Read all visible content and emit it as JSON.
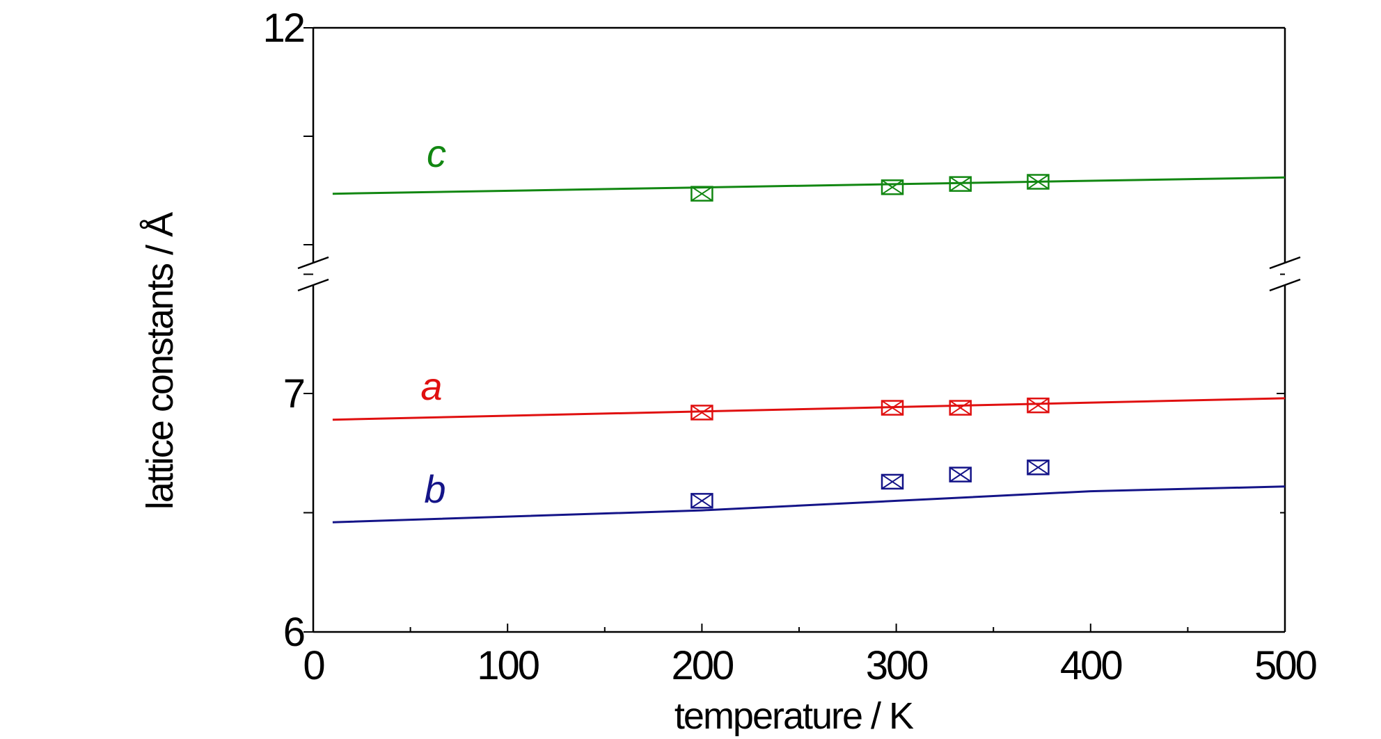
{
  "chart_data": {
    "type": "scatter",
    "title": "",
    "xlabel": "temperature / K",
    "ylabel": "lattice constants / Å",
    "xlim": [
      0,
      500
    ],
    "x_ticks": [
      "0",
      "100",
      "200",
      "300",
      "400",
      "500"
    ],
    "ylim_lower": [
      6,
      7.5
    ],
    "ylim_upper": [
      9.8,
      12
    ],
    "y_ticks_lower": [
      "6",
      "7"
    ],
    "y_ticks_upper": [
      "12"
    ],
    "axis_break": true,
    "grid": false,
    "series": [
      {
        "name": "c",
        "color": "#128712",
        "panel": "upper",
        "points": [
          {
            "x": 200,
            "y": 10.47
          },
          {
            "x": 298,
            "y": 10.53
          },
          {
            "x": 333,
            "y": 10.56
          },
          {
            "x": 373,
            "y": 10.58
          }
        ],
        "fit": [
          [
            10,
            10.47
          ],
          [
            500,
            10.62
          ]
        ]
      },
      {
        "name": "a",
        "color": "#e01010",
        "panel": "lower",
        "points": [
          {
            "x": 200,
            "y": 6.92
          },
          {
            "x": 298,
            "y": 6.94
          },
          {
            "x": 333,
            "y": 6.94
          },
          {
            "x": 373,
            "y": 6.95
          }
        ],
        "fit": [
          [
            10,
            6.89
          ],
          [
            500,
            6.98
          ]
        ]
      },
      {
        "name": "b",
        "color": "#141488",
        "panel": "lower",
        "points": [
          {
            "x": 200,
            "y": 6.55
          },
          {
            "x": 298,
            "y": 6.63
          },
          {
            "x": 333,
            "y": 6.66
          },
          {
            "x": 373,
            "y": 6.69
          }
        ],
        "fit": [
          [
            10,
            6.46
          ],
          [
            200,
            6.51
          ],
          [
            300,
            6.55
          ],
          [
            400,
            6.59
          ],
          [
            500,
            6.61
          ]
        ]
      }
    ]
  }
}
